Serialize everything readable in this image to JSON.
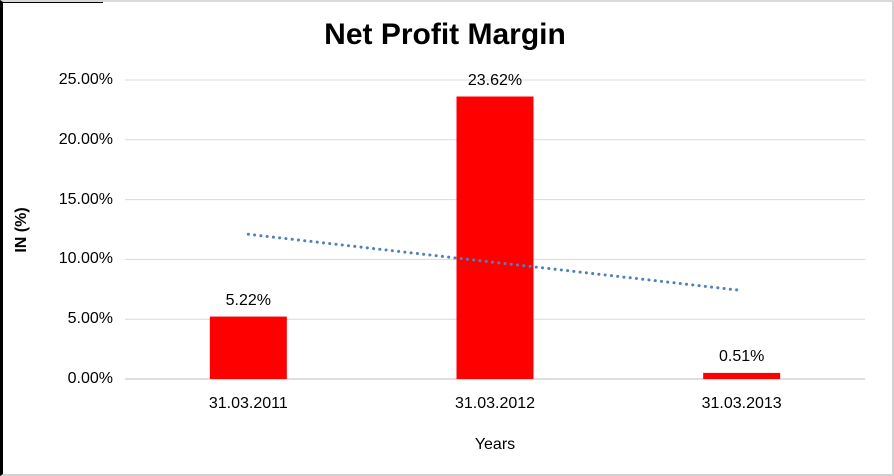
{
  "chart_data": {
    "type": "bar",
    "title": "Net Profit Margin",
    "xlabel": "Years",
    "ylabel": "IN (%)",
    "categories": [
      "31.03.2011",
      "31.03.2012",
      "31.03.2013"
    ],
    "values": [
      5.22,
      23.62,
      0.51
    ],
    "data_labels": [
      "5.22%",
      "23.62%",
      "0.51%"
    ],
    "ylim": [
      0,
      25
    ],
    "ytick_values": [
      0,
      5,
      10,
      15,
      20,
      25
    ],
    "ytick_labels": [
      "0.00%",
      "5.00%",
      "10.00%",
      "15.00%",
      "20.00%",
      "25.00%"
    ],
    "grid": true,
    "legend": "none",
    "bar_color": "#ff0000",
    "gridline_color": "#d9d9d9",
    "axis_line_color": "#bfbfbf",
    "trendline": {
      "style": "dotted",
      "color": "#4f81bd",
      "start_value": 12.1,
      "end_value": 7.4
    }
  }
}
